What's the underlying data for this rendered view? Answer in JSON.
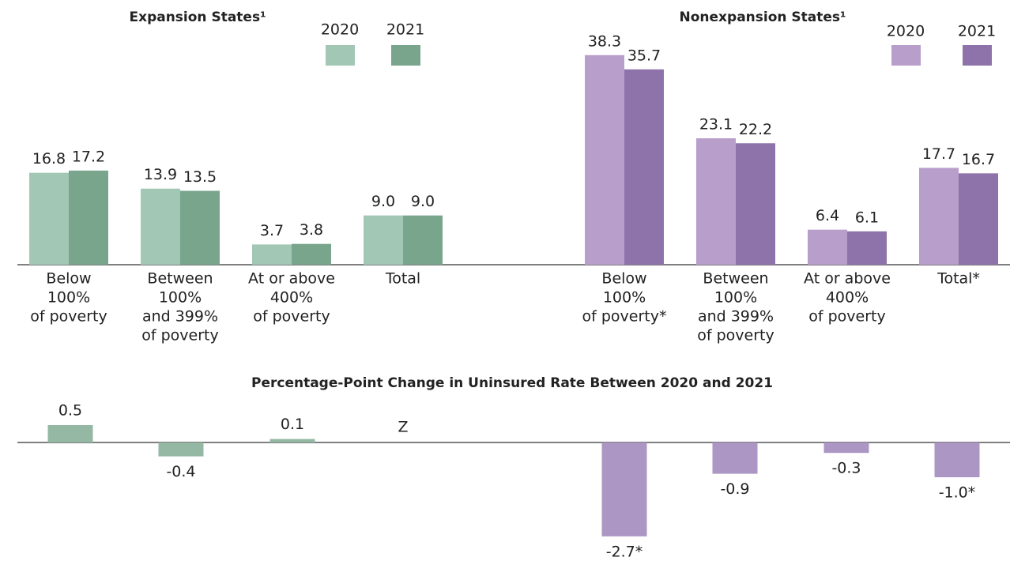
{
  "chart_data": [
    {
      "type": "bar",
      "title": "Expansion States¹",
      "categories": [
        [
          "Below",
          "100%",
          "of poverty"
        ],
        [
          "Between",
          "100%",
          "and 399%",
          "of poverty"
        ],
        [
          "At or above",
          "400%",
          "of poverty"
        ],
        [
          "Total"
        ]
      ],
      "series": [
        {
          "name": "2020",
          "color": "#a3c7b5",
          "values": [
            16.8,
            13.9,
            3.7,
            9.0
          ],
          "value_labels": [
            "16.8",
            "13.9",
            "3.7",
            "9.0"
          ]
        },
        {
          "name": "2021",
          "color": "#78a58c",
          "values": [
            17.2,
            13.5,
            3.8,
            9.0
          ],
          "value_labels": [
            "17.2",
            "13.5",
            "3.8",
            "9.0"
          ]
        }
      ],
      "ylim": [
        0,
        40
      ],
      "legend": "top-right"
    },
    {
      "type": "bar",
      "title": "Nonexpansion States¹",
      "categories": [
        [
          "Below",
          "100%",
          "of poverty*"
        ],
        [
          "Between",
          "100%",
          "and 399%",
          "of poverty"
        ],
        [
          "At or above",
          "400%",
          "of poverty"
        ],
        [
          "Total*"
        ]
      ],
      "series": [
        {
          "name": "2020",
          "color": "#b89ecb",
          "values": [
            38.3,
            23.1,
            6.4,
            17.7
          ],
          "value_labels": [
            "38.3",
            "23.1",
            "6.4",
            "17.7"
          ]
        },
        {
          "name": "2021",
          "color": "#8e73ab",
          "values": [
            35.7,
            22.2,
            6.1,
            16.7
          ],
          "value_labels": [
            "35.7",
            "22.2",
            "6.1",
            "16.7"
          ]
        }
      ],
      "ylim": [
        0,
        40
      ],
      "legend": "top-right"
    },
    {
      "type": "change-bar",
      "title": "Percentage-Point Change in Uninsured Rate Between 2020 and 2021",
      "values": [
        0.5,
        -0.4,
        0.1,
        null,
        -2.7,
        -0.9,
        -0.3,
        -1.0
      ],
      "value_labels": [
        "0.5",
        "-0.4",
        "0.1",
        "Z",
        "-2.7*",
        "-0.9",
        "-0.3",
        "-1.0*"
      ],
      "colors": [
        "#94b8a4",
        "#94b8a4",
        "#94b8a4",
        "#94b8a4",
        "#ab96c4",
        "#ab96c4",
        "#ab96c4",
        "#ab96c4"
      ],
      "ylim": [
        -3,
        1
      ]
    }
  ]
}
